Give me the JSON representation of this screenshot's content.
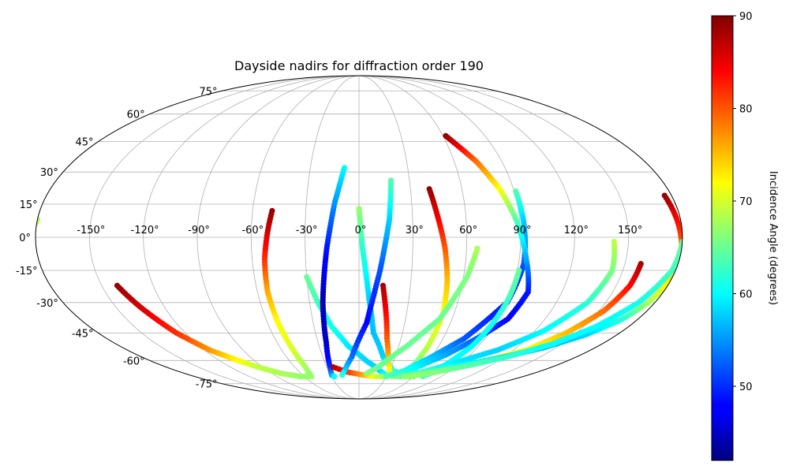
{
  "chart_data": {
    "type": "scatter",
    "projection": "mollweide",
    "title": "Dayside nadirs for diffraction order 190",
    "xlabel": "",
    "ylabel": "",
    "xlim": [
      -180,
      180
    ],
    "ylim": [
      -90,
      90
    ],
    "grid": true,
    "lon_ticks": [
      -150,
      -120,
      -90,
      -60,
      -30,
      0,
      30,
      60,
      90,
      120,
      150
    ],
    "lon_tick_labels": [
      "-150°",
      "-120°",
      "-90°",
      "-60°",
      "-30°",
      "0°",
      "30°",
      "60°",
      "90°",
      "120°",
      "150°"
    ],
    "lat_ticks": [
      -75,
      -60,
      -45,
      -30,
      -15,
      0,
      15,
      30,
      45,
      60,
      75
    ],
    "lat_tick_labels": [
      "-75°",
      "-60°",
      "-45°",
      "-30°",
      "-15°",
      "0°",
      "15°",
      "30°",
      "45°",
      "60°",
      "75°"
    ],
    "colorbar": {
      "label": "Incidence Angle (degrees)",
      "colormap": "jet",
      "range": [
        42,
        90
      ],
      "ticks": [
        50,
        60,
        70,
        80,
        90
      ],
      "tick_labels": [
        "50",
        "60",
        "70",
        "80",
        "90"
      ]
    },
    "tracks": [
      {
        "points": [
          [
            -180,
            8,
            68
          ],
          [
            -182,
            3,
            68
          ]
        ]
      },
      {
        "points": [
          [
            -141,
            -22,
            89
          ],
          [
            -135,
            -32,
            86
          ],
          [
            -126,
            -45,
            82
          ],
          [
            -116,
            -54,
            77
          ],
          [
            -104,
            -60,
            72
          ],
          [
            -94,
            -64,
            69
          ],
          [
            -80,
            -68,
            68
          ],
          [
            -64,
            -70,
            67
          ],
          [
            -52,
            -70,
            67
          ]
        ]
      },
      {
        "points": [
          [
            -49,
            12,
            89
          ],
          [
            -51,
            2,
            86
          ],
          [
            -53,
            -10,
            82
          ],
          [
            -54,
            -25,
            76
          ],
          [
            -53,
            -40,
            72
          ],
          [
            -51,
            -55,
            70
          ],
          [
            -50,
            -63,
            68
          ],
          [
            -51,
            -68,
            67
          ],
          [
            -55,
            -69,
            67
          ]
        ]
      },
      {
        "points": [
          [
            -30,
            -18,
            65
          ],
          [
            -25,
            -30,
            63
          ],
          [
            -18,
            -42,
            61
          ],
          [
            -8,
            -52,
            59
          ],
          [
            6,
            -60,
            58
          ],
          [
            20,
            -66,
            58
          ],
          [
            26,
            -68,
            60
          ]
        ]
      },
      {
        "points": [
          [
            -9,
            32,
            60
          ],
          [
            -14,
            15,
            55
          ],
          [
            -18,
            -5,
            49
          ],
          [
            -22,
            -30,
            44
          ],
          [
            -24,
            -50,
            45
          ],
          [
            -27,
            -64,
            50
          ],
          [
            -29,
            -69,
            55
          ],
          [
            -27,
            -70,
            60
          ]
        ]
      },
      {
        "points": [
          [
            -24,
            -64,
            88
          ],
          [
            -12,
            -67,
            82
          ],
          [
            5,
            -69,
            76
          ],
          [
            18,
            -70,
            70
          ],
          [
            30,
            -70,
            67
          ]
        ]
      },
      {
        "points": [
          [
            0,
            13,
            67
          ],
          [
            2,
            -5,
            62
          ],
          [
            6,
            -28,
            58
          ],
          [
            10,
            -45,
            57
          ],
          [
            20,
            -58,
            58
          ],
          [
            33,
            -66,
            61
          ],
          [
            48,
            -69,
            64
          ],
          [
            60,
            -70,
            66
          ]
        ]
      },
      {
        "points": [
          [
            19,
            26,
            64
          ],
          [
            17,
            8,
            58
          ],
          [
            12,
            -15,
            52
          ],
          [
            5,
            -40,
            48
          ],
          [
            -6,
            -58,
            53
          ],
          [
            -14,
            -66,
            58
          ],
          [
            -18,
            -69,
            62
          ]
        ]
      },
      {
        "points": [
          [
            14,
            -22,
            88
          ],
          [
            17,
            -35,
            84
          ],
          [
            20,
            -48,
            80
          ],
          [
            25,
            -60,
            75
          ],
          [
            31,
            -67,
            71
          ],
          [
            37,
            -70,
            68
          ]
        ]
      },
      {
        "points": [
          [
            41,
            22,
            89
          ],
          [
            44,
            10,
            85
          ],
          [
            48,
            -5,
            80
          ],
          [
            51,
            -20,
            75
          ],
          [
            53,
            -35,
            72
          ],
          [
            52,
            -52,
            69
          ],
          [
            50,
            -62,
            66
          ],
          [
            46,
            -69,
            65
          ],
          [
            40,
            -70,
            66
          ]
        ]
      },
      {
        "points": [
          [
            66,
            -5,
            68
          ],
          [
            62,
            -18,
            66
          ],
          [
            52,
            -38,
            65
          ],
          [
            36,
            -52,
            65
          ],
          [
            18,
            -64,
            65
          ],
          [
            8,
            -68,
            66
          ]
        ]
      },
      {
        "points": [
          [
            91,
            21,
            64
          ],
          [
            92,
            8,
            58
          ],
          [
            93,
            -12,
            52
          ],
          [
            90,
            -30,
            48
          ],
          [
            75,
            -48,
            52
          ],
          [
            60,
            -58,
            57
          ],
          [
            45,
            -66,
            61
          ],
          [
            30,
            -70,
            64
          ]
        ]
      },
      {
        "points": [
          [
            62,
            48,
            89
          ],
          [
            74,
            35,
            79
          ],
          [
            82,
            22,
            72
          ],
          [
            88,
            8,
            64
          ],
          [
            94,
            -10,
            56
          ],
          [
            100,
            -25,
            49
          ],
          [
            96,
            -38,
            48
          ],
          [
            84,
            -48,
            52
          ],
          [
            70,
            -57,
            56
          ],
          [
            52,
            -65,
            60
          ],
          [
            35,
            -69,
            63
          ]
        ]
      },
      {
        "points": [
          [
            91,
            -15,
            65
          ],
          [
            90,
            -28,
            63
          ],
          [
            88,
            -40,
            61
          ],
          [
            85,
            -52,
            60
          ],
          [
            80,
            -60,
            60
          ],
          [
            75,
            -67,
            62
          ],
          [
            70,
            -70,
            64
          ]
        ]
      },
      {
        "points": [
          [
            142,
            -2,
            69
          ],
          [
            144,
            -15,
            66
          ],
          [
            139,
            -30,
            62
          ],
          [
            126,
            -44,
            60
          ],
          [
            108,
            -54,
            58
          ],
          [
            86,
            -61,
            59
          ],
          [
            64,
            -67,
            62
          ],
          [
            45,
            -70,
            65
          ]
        ]
      },
      {
        "points": [
          [
            159,
            -12,
            88
          ],
          [
            158,
            -22,
            84
          ],
          [
            153,
            -34,
            79
          ],
          [
            143,
            -45,
            75
          ],
          [
            130,
            -54,
            72
          ],
          [
            110,
            -60,
            70
          ],
          [
            90,
            -64,
            68
          ],
          [
            70,
            -68,
            67
          ],
          [
            50,
            -70,
            67
          ]
        ]
      },
      {
        "points": [
          [
            176,
            19,
            89
          ],
          [
            178,
            8,
            84
          ],
          [
            180,
            -5,
            79
          ],
          [
            180,
            -18,
            74
          ],
          [
            176,
            -30,
            68
          ],
          [
            170,
            -38,
            62
          ],
          [
            158,
            -46,
            58
          ],
          [
            140,
            -53,
            56
          ],
          [
            120,
            -58,
            57
          ],
          [
            98,
            -62,
            60
          ],
          [
            75,
            -66,
            63
          ],
          [
            52,
            -70,
            66
          ]
        ]
      },
      {
        "points": [
          [
            180,
            -2,
            65
          ],
          [
            178,
            -15,
            63
          ],
          [
            170,
            -30,
            61
          ],
          [
            158,
            -42,
            60
          ],
          [
            143,
            -51,
            60
          ],
          [
            122,
            -58,
            62
          ],
          [
            100,
            -63,
            64
          ],
          [
            78,
            -67,
            66
          ],
          [
            55,
            -70,
            67
          ]
        ]
      }
    ]
  }
}
